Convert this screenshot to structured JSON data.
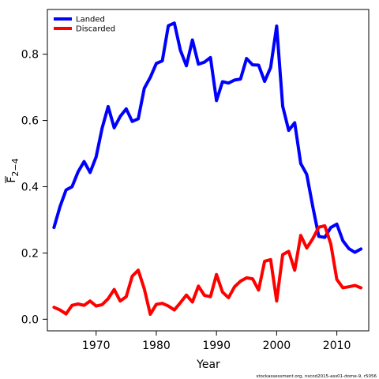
{
  "chart_data": {
    "type": "line",
    "xlabel": "Year",
    "ylabel_main": "F",
    "ylabel_sub": "2−4",
    "xlim": [
      1961.9,
      2015.3
    ],
    "ylim": [
      -0.035,
      0.935
    ],
    "x_ticks": [
      1970,
      1980,
      1990,
      2000,
      2010
    ],
    "x_tick_labels": [
      "1970",
      "1980",
      "1990",
      "2000",
      "2010"
    ],
    "y_ticks": [
      0.0,
      0.2,
      0.4,
      0.6,
      0.8
    ],
    "y_tick_labels": [
      "0.0",
      "0.2",
      "0.4",
      "0.6",
      "0.8"
    ],
    "grid": false,
    "legend": "top-left",
    "x": [
      1963,
      1964,
      1965,
      1966,
      1967,
      1968,
      1969,
      1970,
      1971,
      1972,
      1973,
      1974,
      1975,
      1976,
      1977,
      1978,
      1979,
      1980,
      1981,
      1982,
      1983,
      1984,
      1985,
      1986,
      1987,
      1988,
      1989,
      1990,
      1991,
      1992,
      1993,
      1994,
      1995,
      1996,
      1997,
      1998,
      1999,
      2000,
      2001,
      2002,
      2003,
      2004,
      2005,
      2006,
      2007,
      2008,
      2009,
      2010,
      2011,
      2012,
      2013,
      2014
    ],
    "series": [
      {
        "name": "Landed",
        "color": "#0000ff",
        "values": [
          0.277,
          0.34,
          0.39,
          0.4,
          0.445,
          0.476,
          0.443,
          0.49,
          0.577,
          0.642,
          0.578,
          0.612,
          0.635,
          0.597,
          0.605,
          0.697,
          0.73,
          0.772,
          0.78,
          0.886,
          0.894,
          0.812,
          0.765,
          0.843,
          0.77,
          0.776,
          0.79,
          0.66,
          0.717,
          0.713,
          0.722,
          0.725,
          0.787,
          0.768,
          0.767,
          0.718,
          0.76,
          0.885,
          0.643,
          0.57,
          0.593,
          0.47,
          0.437,
          0.34,
          0.25,
          0.247,
          0.277,
          0.287,
          0.237,
          0.213,
          0.202,
          0.212
        ]
      },
      {
        "name": "Discarded",
        "color": "#ff0000",
        "values": [
          0.036,
          0.028,
          0.016,
          0.042,
          0.046,
          0.042,
          0.055,
          0.04,
          0.044,
          0.062,
          0.09,
          0.055,
          0.068,
          0.13,
          0.148,
          0.092,
          0.015,
          0.045,
          0.048,
          0.04,
          0.028,
          0.05,
          0.073,
          0.052,
          0.1,
          0.072,
          0.068,
          0.135,
          0.082,
          0.065,
          0.098,
          0.115,
          0.125,
          0.122,
          0.088,
          0.175,
          0.18,
          0.055,
          0.195,
          0.205,
          0.148,
          0.253,
          0.215,
          0.243,
          0.278,
          0.282,
          0.227,
          0.12,
          0.095,
          0.098,
          0.102,
          0.095
        ]
      }
    ]
  },
  "footnote": "stockassessment.org, nscod2015-ass01-dome-9, r5056"
}
